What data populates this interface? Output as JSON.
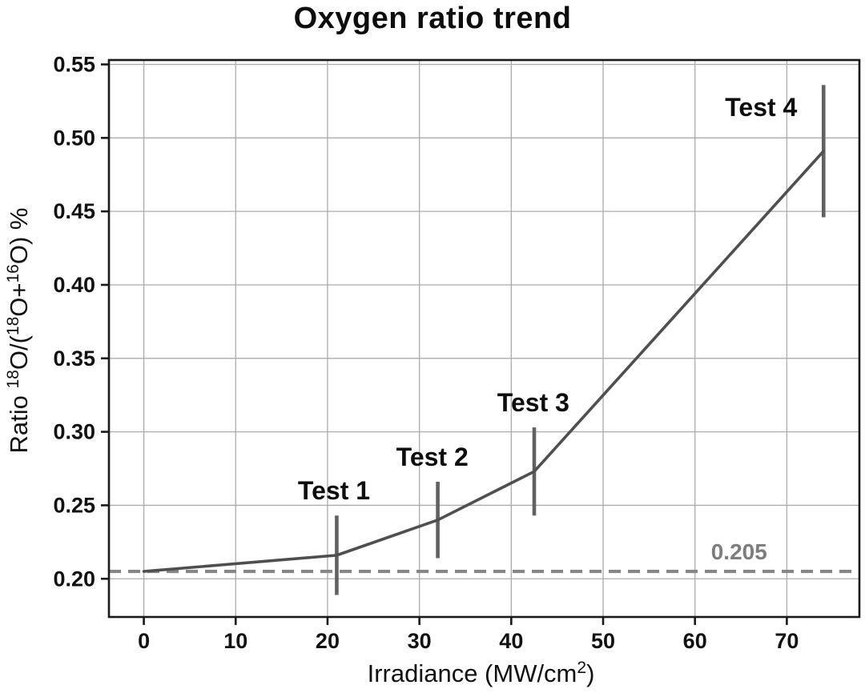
{
  "chart_data": {
    "type": "line",
    "title": "Oxygen ratio trend",
    "xlabel": "Irradiance (MW/cm2)",
    "xlabel_parts": [
      {
        "text": "Irradiance (MW/cm"
      },
      {
        "sup": "2"
      },
      {
        "text": ")"
      }
    ],
    "ylabel": "Ratio 18O/(18O+16O) %",
    "ylabel_parts": [
      {
        "text": "Ratio "
      },
      {
        "sup": "18"
      },
      {
        "text": "O/("
      },
      {
        "sup": "18"
      },
      {
        "text": "O+"
      },
      {
        "sup": "16"
      },
      {
        "text": "O) %"
      }
    ],
    "xlim": [
      -3.8,
      77.9
    ],
    "ylim": [
      0.174,
      0.553
    ],
    "grid": true,
    "legend": "none",
    "x_ticks": {
      "values": [
        0,
        10,
        20,
        30,
        40,
        50,
        60,
        70
      ],
      "labels": [
        "0",
        "10",
        "20",
        "30",
        "40",
        "50",
        "60",
        "70"
      ]
    },
    "y_ticks": {
      "values": [
        0.2,
        0.25,
        0.3,
        0.35,
        0.4,
        0.45,
        0.5,
        0.55
      ],
      "labels": [
        "0.20",
        "0.25",
        "0.30",
        "0.35",
        "0.40",
        "0.45",
        "0.50",
        "0.55"
      ]
    },
    "series": [
      {
        "name": "oxygen-ratio-trend",
        "x": [
          0,
          21,
          32,
          42.5,
          74
        ],
        "y": [
          0.205,
          0.216,
          0.24,
          0.273,
          0.491
        ],
        "yerr": [
          null,
          0.027,
          0.026,
          0.03,
          0.045
        ],
        "color": "#4f4f4f",
        "error_color": "#616161"
      }
    ],
    "threshold_line": {
      "value": 0.205,
      "label": "0.205",
      "color": "#878787",
      "label_color": "#7d7d7d",
      "label_x": 64.8,
      "label_y": 0.218,
      "style": "dashed"
    },
    "annotations": [
      {
        "text": "Test 1",
        "x": 20.7,
        "y": 0.26
      },
      {
        "text": "Test 2",
        "x": 31.4,
        "y": 0.283
      },
      {
        "text": "Test 3",
        "x": 42.4,
        "y": 0.32
      },
      {
        "text": "Test 4",
        "x": 67.2,
        "y": 0.521
      }
    ],
    "colors": {
      "grid": "#ababab",
      "frame": "#1a1a1a",
      "tick_text": "#111111",
      "annotation_text": "#0d0d0d",
      "background": "#ffffff"
    }
  }
}
